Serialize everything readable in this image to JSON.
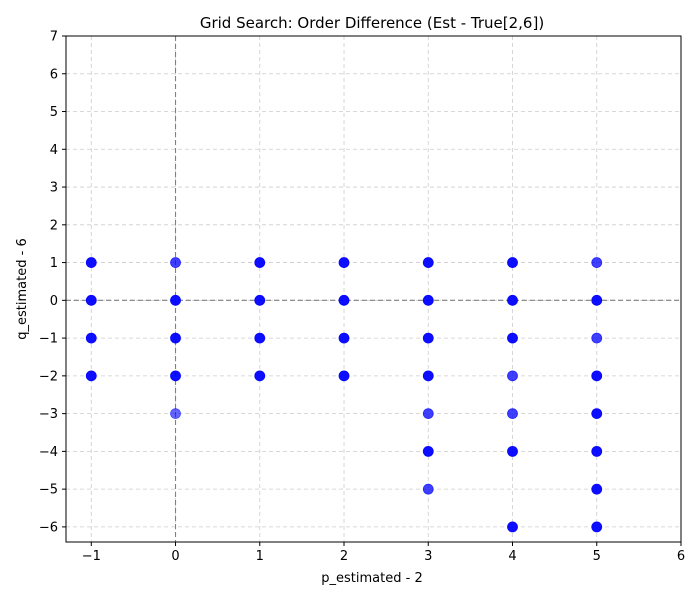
{
  "chart_data": {
    "type": "scatter",
    "title": "Grid Search: Order Difference (Est - True[2,6])",
    "xlabel": "p_estimated - 2",
    "ylabel": "q_estimated - 6",
    "xlim": [
      -1.3,
      6
    ],
    "ylim": [
      -6.4,
      7
    ],
    "xticks": [
      -1,
      0,
      1,
      2,
      3,
      4,
      5,
      6
    ],
    "yticks": [
      -6,
      -5,
      -4,
      -3,
      -2,
      -1,
      0,
      1,
      2,
      3,
      4,
      5,
      6,
      7
    ],
    "grid": true,
    "reference_lines": {
      "x": 0,
      "y": 0
    },
    "marker_color": "#0000ff",
    "reference_line_color": "#808080",
    "points": [
      {
        "x": -1,
        "y": 1,
        "dense": true
      },
      {
        "x": -1,
        "y": 0,
        "dense": true
      },
      {
        "x": -1,
        "y": -1,
        "dense": true
      },
      {
        "x": -1,
        "y": -2,
        "dense": true
      },
      {
        "x": 0,
        "y": 1,
        "dense": false
      },
      {
        "x": 0,
        "y": 0,
        "dense": true
      },
      {
        "x": 0,
        "y": -1,
        "dense": true
      },
      {
        "x": 0,
        "y": -2,
        "dense": true
      },
      {
        "x": 0,
        "y": -3,
        "dense": false,
        "light": true
      },
      {
        "x": 1,
        "y": 1,
        "dense": true
      },
      {
        "x": 1,
        "y": 0,
        "dense": true
      },
      {
        "x": 1,
        "y": -1,
        "dense": true
      },
      {
        "x": 1,
        "y": -2,
        "dense": true
      },
      {
        "x": 2,
        "y": 1,
        "dense": true
      },
      {
        "x": 2,
        "y": 0,
        "dense": true
      },
      {
        "x": 2,
        "y": -1,
        "dense": true
      },
      {
        "x": 2,
        "y": -2,
        "dense": true
      },
      {
        "x": 3,
        "y": 1,
        "dense": true
      },
      {
        "x": 3,
        "y": 0,
        "dense": true
      },
      {
        "x": 3,
        "y": -1,
        "dense": true
      },
      {
        "x": 3,
        "y": -2,
        "dense": true
      },
      {
        "x": 3,
        "y": -3,
        "dense": false
      },
      {
        "x": 3,
        "y": -4,
        "dense": true
      },
      {
        "x": 3,
        "y": -5,
        "dense": false
      },
      {
        "x": 4,
        "y": 1,
        "dense": true
      },
      {
        "x": 4,
        "y": 0,
        "dense": true
      },
      {
        "x": 4,
        "y": -1,
        "dense": true
      },
      {
        "x": 4,
        "y": -2,
        "dense": false
      },
      {
        "x": 4,
        "y": -3,
        "dense": false
      },
      {
        "x": 4,
        "y": -4,
        "dense": true
      },
      {
        "x": 4,
        "y": -6,
        "dense": true
      },
      {
        "x": 5,
        "y": 1,
        "dense": false
      },
      {
        "x": 5,
        "y": 0,
        "dense": true
      },
      {
        "x": 5,
        "y": -1,
        "dense": false
      },
      {
        "x": 5,
        "y": -2,
        "dense": true
      },
      {
        "x": 5,
        "y": -3,
        "dense": true
      },
      {
        "x": 5,
        "y": -4,
        "dense": true
      },
      {
        "x": 5,
        "y": -5,
        "dense": true
      },
      {
        "x": 5,
        "y": -6,
        "dense": true
      }
    ]
  }
}
